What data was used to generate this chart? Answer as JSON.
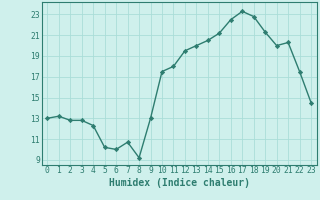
{
  "x": [
    0,
    1,
    2,
    3,
    4,
    5,
    6,
    7,
    8,
    9,
    10,
    11,
    12,
    13,
    14,
    15,
    16,
    17,
    18,
    19,
    20,
    21,
    22,
    23
  ],
  "y": [
    13,
    13.2,
    12.8,
    12.8,
    12.3,
    10.2,
    10.0,
    10.7,
    9.2,
    13,
    17.5,
    18.0,
    19.5,
    20.0,
    20.5,
    21.2,
    22.5,
    23.3,
    22.8,
    21.3,
    20.0,
    20.3,
    17.5,
    14.5
  ],
  "line_color": "#2e7d70",
  "marker": "D",
  "marker_size": 2.2,
  "bg_color": "#cff0ec",
  "grid_color": "#aaddd8",
  "xlabel": "Humidex (Indice chaleur)",
  "xlim": [
    -0.5,
    23.5
  ],
  "ylim": [
    8.5,
    24.2
  ],
  "yticks": [
    9,
    11,
    13,
    15,
    17,
    19,
    21,
    23
  ],
  "xticks": [
    0,
    1,
    2,
    3,
    4,
    5,
    6,
    7,
    8,
    9,
    10,
    11,
    12,
    13,
    14,
    15,
    16,
    17,
    18,
    19,
    20,
    21,
    22,
    23
  ],
  "tick_label_fontsize": 5.8,
  "xlabel_fontsize": 7.0,
  "line_width": 1.0
}
